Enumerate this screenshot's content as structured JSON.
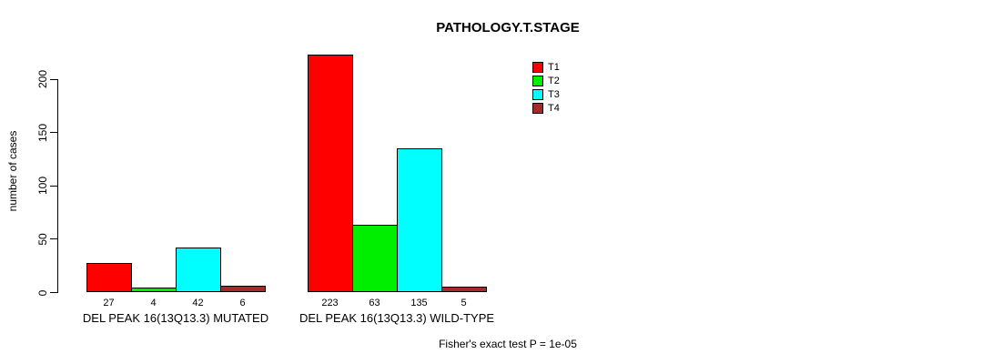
{
  "chart_data": {
    "type": "bar",
    "title": "PATHOLOGY.T.STAGE",
    "ylabel": "number of cases",
    "xlabel": "",
    "ylim": [
      0,
      200
    ],
    "yticks": [
      0,
      50,
      100,
      150,
      200
    ],
    "grid": false,
    "legend_position": "top-right",
    "categories": [
      "DEL PEAK 16(13Q13.3) MUTATED",
      "DEL PEAK 16(13Q13.3) WILD-TYPE"
    ],
    "series": [
      {
        "name": "T1",
        "color": "#ff0000",
        "values": [
          27,
          223
        ]
      },
      {
        "name": "T2",
        "color": "#00ee00",
        "values": [
          4,
          63
        ]
      },
      {
        "name": "T3",
        "color": "#00ffff",
        "values": [
          42,
          135
        ]
      },
      {
        "name": "T4",
        "color": "#a52a2a",
        "values": [
          6,
          5
        ]
      }
    ],
    "bar_value_labels": [
      [
        "27",
        "4",
        "42",
        "6"
      ],
      [
        "223",
        "63",
        "135",
        "5"
      ]
    ],
    "annotation": "Fisher's exact test P = 1e-05"
  }
}
